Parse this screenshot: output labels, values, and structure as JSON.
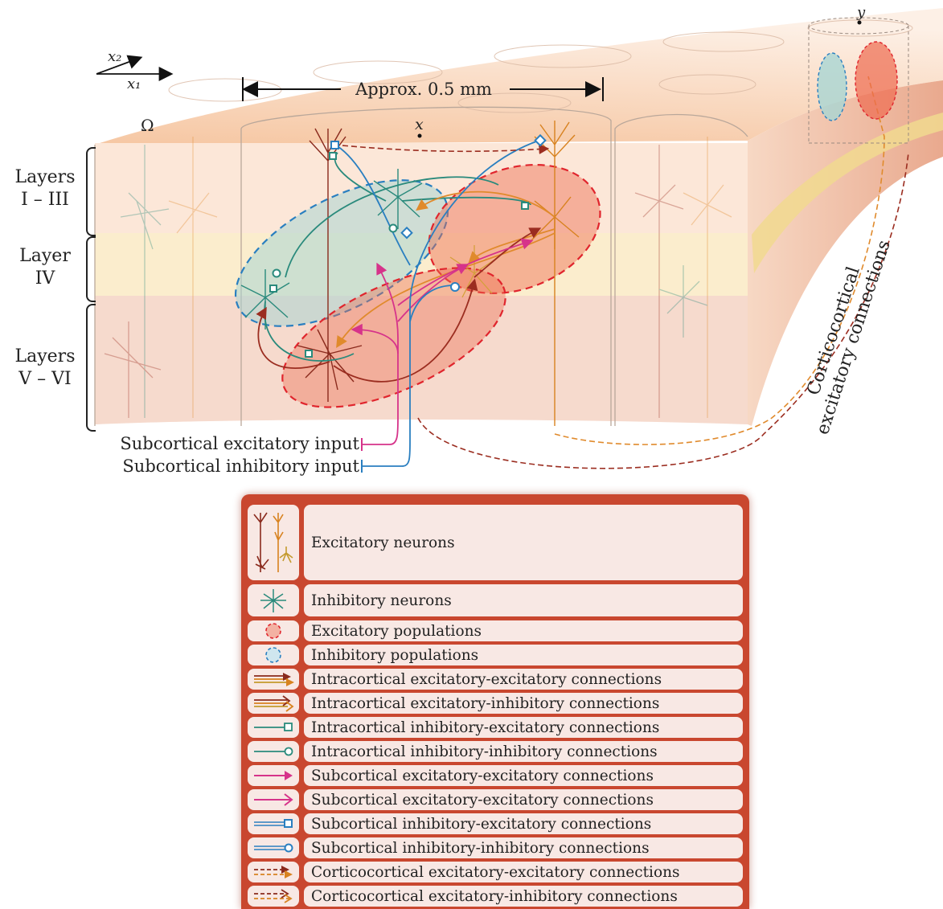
{
  "figure": {
    "scale_label": "Approx. 0.5 mm",
    "axis_x1": "x₁",
    "axis_x2": "x₂",
    "domain_symbol": "Ω",
    "point_x": "x",
    "point_y": "y",
    "layers": [
      "Layers\nI – III",
      "Layer\nIV",
      "Layers\nV – VI"
    ],
    "subcortical_excitatory_input": "Subcortical excitatory input",
    "subcortical_inhibitory_input": "Subcortical inhibitory input",
    "corticocortical_label": "Corticocortical\nexcitatory connections"
  },
  "legend": {
    "items": [
      {
        "icon": "excitatory-neurons-icon",
        "label": "Excitatory neurons"
      },
      {
        "icon": "inhibitory-neuron-icon",
        "label": "Inhibitory neurons"
      },
      {
        "icon": "excitatory-population-icon",
        "label": "Excitatory populations"
      },
      {
        "icon": "inhibitory-population-icon",
        "label": "Inhibitory populations"
      },
      {
        "icon": "ee-arrow-icon",
        "label": "Intracortical excitatory-excitatory connections"
      },
      {
        "icon": "ei-arrow-icon",
        "label": "Intracortical excitatory-inhibitory connections"
      },
      {
        "icon": "ie-square-icon",
        "label": "Intracortical inhibitory-excitatory connections"
      },
      {
        "icon": "ii-circle-icon",
        "label": "Intracortical inhibitory-inhibitory connections"
      },
      {
        "icon": "sub-ee-arrow-icon",
        "label": "Subcortical excitatory-excitatory connections"
      },
      {
        "icon": "sub-ei-arrow-icon",
        "label": "Subcortical excitatory-excitatory connections"
      },
      {
        "icon": "sub-ie-square-icon",
        "label": "Subcortical inhibitory-excitatory connections"
      },
      {
        "icon": "sub-ii-circle-icon",
        "label": "Subcortical inhibitory-inhibitory connections"
      },
      {
        "icon": "cc-ee-arrow-icon",
        "label": "Corticocortical excitatory-excitatory connections"
      },
      {
        "icon": "cc-ei-arrow-icon",
        "label": "Corticocortical excitatory-inhibitory connections"
      }
    ]
  },
  "colors": {
    "excitatory_red": "#9b2d20",
    "excitatory_orange": "#e08a2c",
    "inhibitory_teal": "#2a8a7c",
    "subcortical_magenta": "#d6338a",
    "subcortical_blue": "#2a7fc0",
    "legend_frame": "#c9472f",
    "legend_cell": "#f8e8e4"
  }
}
